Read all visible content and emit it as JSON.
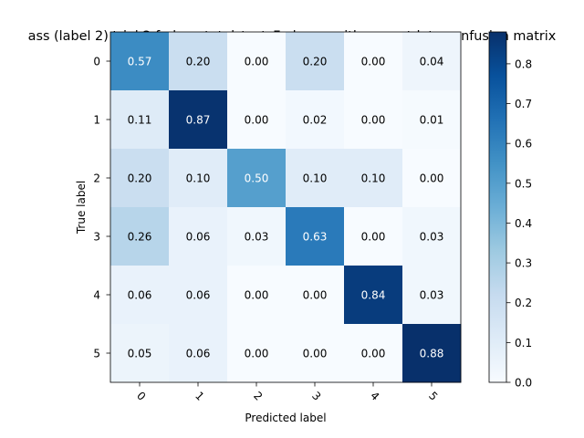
{
  "chart_data": {
    "type": "heatmap",
    "title": "ass (label 2) trial 2 fedavg total_test_Fed_avg_with_concatdata confusion matrix",
    "xlabel": "Predicted label",
    "ylabel": "True label",
    "x_categories": [
      "0",
      "1",
      "2",
      "3",
      "4",
      "5"
    ],
    "y_categories": [
      "0",
      "1",
      "2",
      "3",
      "4",
      "5"
    ],
    "values": [
      [
        0.57,
        0.2,
        0.0,
        0.2,
        0.0,
        0.04
      ],
      [
        0.11,
        0.87,
        0.0,
        0.02,
        0.0,
        0.01
      ],
      [
        0.2,
        0.1,
        0.5,
        0.1,
        0.1,
        0.0
      ],
      [
        0.26,
        0.06,
        0.03,
        0.63,
        0.0,
        0.03
      ],
      [
        0.06,
        0.06,
        0.0,
        0.0,
        0.84,
        0.03
      ],
      [
        0.05,
        0.06,
        0.0,
        0.0,
        0.0,
        0.88
      ]
    ],
    "colormap": "Blues",
    "vmin": 0.0,
    "vmax": 0.88,
    "colorbar_ticks": [
      "0.0",
      "0.1",
      "0.2",
      "0.3",
      "0.4",
      "0.5",
      "0.6",
      "0.7",
      "0.8"
    ],
    "x_tick_rotation": 45,
    "grid": false,
    "legend": "colorbar-right"
  }
}
